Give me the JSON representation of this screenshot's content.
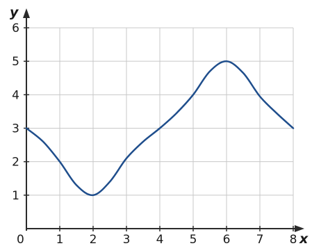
{
  "chart_data": {
    "type": "line",
    "title": "",
    "xlabel": "x",
    "ylabel": "y",
    "xlim": [
      0,
      8
    ],
    "ylim": [
      0,
      6
    ],
    "x_ticks": [
      "1",
      "2",
      "3",
      "4",
      "5",
      "6",
      "7",
      "8"
    ],
    "y_ticks": [
      "1",
      "2",
      "3",
      "4",
      "5",
      "6"
    ],
    "origin_label": "0",
    "grid": true,
    "line_color": "#1f4e8c",
    "series": [
      {
        "x": [
          0,
          0.5,
          1,
          1.5,
          2,
          2.5,
          3,
          3.5,
          4,
          4.5,
          5,
          5.5,
          6,
          6.5,
          7,
          7.5,
          8
        ],
        "values": [
          3,
          2.6,
          2,
          1.3,
          1,
          1.4,
          2.1,
          2.6,
          3,
          3.45,
          4,
          4.7,
          5,
          4.65,
          3.95,
          3.45,
          3
        ]
      }
    ]
  }
}
